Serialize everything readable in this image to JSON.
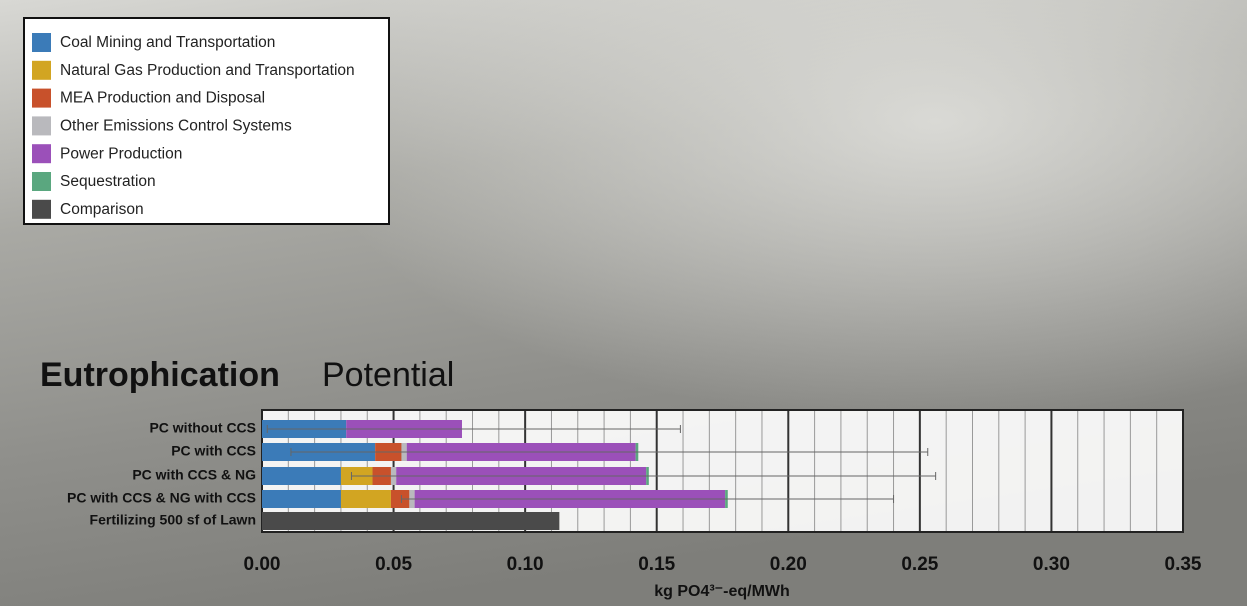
{
  "chart_data": {
    "type": "stacked-hbar",
    "title": "Eutrophication",
    "subtitle": "Potential",
    "x_label": "kg PO4³⁻-eq/MWh",
    "categories": [
      "PC without CCS",
      "PC with CCS",
      "PC with CCS & NG",
      "PC with CCS & NG with CCS",
      "Fertilizing 500 sf of Lawn"
    ],
    "series": [
      {
        "name": "Coal Mining and Transportation",
        "color": "#3b7bb8",
        "values": [
          0.032,
          0.043,
          0.03,
          0.03,
          null
        ]
      },
      {
        "name": "Natural Gas Production and Transportation",
        "color": "#d2a522",
        "values": [
          null,
          null,
          0.012,
          0.019,
          null
        ]
      },
      {
        "name": "MEA Production and Disposal",
        "color": "#c8512b",
        "values": [
          null,
          0.01,
          0.007,
          0.007,
          null
        ]
      },
      {
        "name": "Other Emissions Control Systems",
        "color": "#b9b9bd",
        "values": [
          null,
          0.002,
          0.002,
          0.002,
          null
        ]
      },
      {
        "name": "Power Production",
        "color": "#9b50b9",
        "values": [
          0.044,
          0.087,
          0.095,
          0.118,
          null
        ]
      },
      {
        "name": "Sequestration",
        "color": "#5aa77f",
        "values": [
          null,
          0.001,
          0.001,
          0.001,
          null
        ]
      },
      {
        "name": "Comparison",
        "color": "#4a4a4a",
        "values": [
          null,
          null,
          null,
          null,
          0.113
        ]
      }
    ],
    "error_low": [
      0.002,
      0.011,
      0.034,
      0.053,
      null
    ],
    "error_high": [
      0.159,
      0.253,
      0.256,
      0.24,
      null
    ],
    "xlim": [
      0,
      0.35
    ],
    "xticks": [
      {
        "value": 0,
        "label": "0.00"
      },
      {
        "value": 0.05,
        "label": "0.05"
      },
      {
        "value": 0.1,
        "label": "0.10"
      },
      {
        "value": 0.15,
        "label": "0.15"
      },
      {
        "value": 0.2,
        "label": "0.20"
      },
      {
        "value": 0.25,
        "label": "0.25"
      },
      {
        "value": 0.3,
        "label": "0.30"
      },
      {
        "value": 0.35,
        "label": "0.35"
      }
    ],
    "minor_xticks": [
      0.01,
      0.02,
      0.03,
      0.04,
      0.06,
      0.07,
      0.08,
      0.09,
      0.11,
      0.12,
      0.13,
      0.14,
      0.16,
      0.17,
      0.18,
      0.19,
      0.21,
      0.22,
      0.23,
      0.24,
      0.26,
      0.27,
      0.28,
      0.29,
      0.31,
      0.32,
      0.33,
      0.34
    ],
    "grid": true,
    "legend": "upper-left"
  }
}
